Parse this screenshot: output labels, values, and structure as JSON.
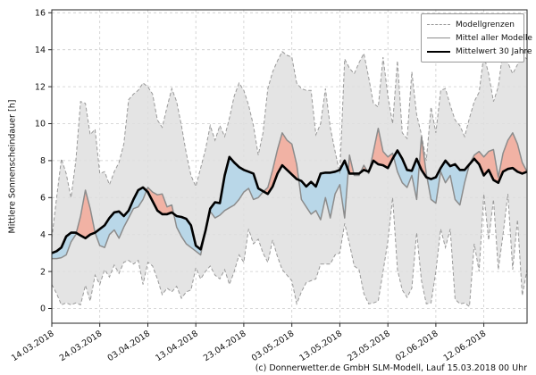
{
  "meta": {
    "caption": "(c) Donnerwetter.de GmbH SLM-Modell, Lauf 15.03.2018 00 Uhr"
  },
  "chart_data": {
    "type": "line",
    "title": "",
    "xlabel": "",
    "ylabel": "Mittlere Sonnenscheindauer [h]",
    "ylim": [
      0,
      16
    ],
    "ytick_step": 2,
    "grid": "dashed",
    "days_total": 100,
    "x_start_date": "14.03.2018",
    "x_tick_days": [
      0,
      10,
      20,
      30,
      40,
      50,
      60,
      70,
      80,
      90
    ],
    "x_tick_labels": [
      "14.03.2018",
      "24.03.2018",
      "03.04.2018",
      "13.04.2018",
      "23.04.2018",
      "03.05.2018",
      "13.05.2018",
      "23.05.2018",
      "02.06.2018",
      "12.06.2018"
    ],
    "legend": {
      "position": "top-right",
      "items": [
        {
          "label": "Modellgrenzen",
          "style": "dashed",
          "color": "#999999"
        },
        {
          "label": "Mittel aller Modelle",
          "style": "solid",
          "color": "#8c8c8c"
        },
        {
          "label": "Mittelwert 30 Jahre",
          "style": "solid-thick",
          "color": "#000000"
        }
      ]
    },
    "colors": {
      "band_fill": "#dfdfdf",
      "band_edge": "#999999",
      "above_fill": "#f1b2a4",
      "below_fill": "#b9d7e8",
      "model_mean_line": "#8c8c8c",
      "mean30_line": "#000000",
      "grid": "#cccccc",
      "spine": "#262626"
    },
    "series": [
      {
        "name": "Modellgrenzen (Maximum)",
        "values": [
          3.8,
          6.0,
          8.1,
          7.3,
          6.0,
          8.0,
          11.2,
          11.1,
          9.4,
          9.7,
          7.3,
          7.4,
          6.7,
          7.4,
          7.9,
          8.9,
          11.3,
          11.6,
          11.8,
          12.2,
          12.0,
          11.6,
          10.2,
          9.8,
          10.9,
          11.9,
          11.2,
          9.9,
          8.4,
          7.2,
          6.6,
          7.6,
          8.6,
          9.9,
          9.1,
          9.9,
          9.3,
          10.3,
          11.5,
          12.2,
          11.8,
          11.0,
          9.9,
          8.3,
          9.5,
          11.9,
          12.8,
          13.4,
          13.9,
          13.7,
          13.6,
          12.2,
          11.9,
          11.8,
          11.8,
          9.4,
          10.0,
          11.9,
          9.8,
          8.5,
          7.3,
          13.5,
          13.0,
          12.7,
          13.3,
          13.8,
          12.5,
          11.1,
          10.9,
          13.6,
          11.5,
          10.0,
          13.4,
          9.5,
          9.2,
          12.8,
          10.5,
          9.4,
          8.0,
          10.9,
          9.5,
          11.8,
          11.9,
          11.0,
          10.2,
          9.9,
          9.3,
          10.3,
          11.2,
          11.7,
          13.7,
          12.7,
          11.2,
          12.0,
          14.0,
          13.3,
          12.7,
          13.2,
          13.7,
          13.5
        ]
      },
      {
        "name": "Modellgrenzen (Minimum)",
        "values": [
          1.3,
          0.8,
          0.2,
          0.3,
          0.2,
          0.3,
          0.2,
          1.25,
          0.4,
          1.8,
          1.3,
          2.1,
          1.7,
          2.35,
          1.9,
          2.5,
          2.6,
          2.4,
          2.6,
          1.3,
          2.5,
          2.3,
          1.6,
          0.75,
          1.1,
          0.9,
          1.2,
          0.55,
          0.9,
          1.0,
          2.2,
          1.6,
          2.0,
          2.3,
          1.8,
          1.6,
          2.1,
          1.3,
          2.0,
          2.9,
          2.5,
          4.3,
          3.5,
          3.75,
          3.0,
          2.5,
          3.7,
          2.8,
          2.1,
          1.8,
          1.5,
          0.25,
          0.9,
          1.4,
          1.5,
          1.6,
          2.4,
          2.4,
          2.4,
          2.9,
          3.0,
          4.6,
          3.5,
          2.3,
          2.1,
          0.8,
          0.25,
          0.3,
          0.4,
          2.0,
          3.65,
          6.0,
          2.1,
          1.0,
          0.6,
          1.1,
          4.1,
          1.5,
          0.25,
          0.3,
          2.0,
          4.3,
          3.3,
          4.3,
          0.5,
          0.25,
          0.3,
          0.1,
          3.5,
          2.0,
          6.2,
          3.7,
          5.9,
          2.1,
          4.0,
          6.2,
          2.1,
          4.8,
          0.7,
          2.1
        ]
      },
      {
        "name": "Mittel aller Modelle",
        "values": [
          2.7,
          2.7,
          2.75,
          2.9,
          3.6,
          4.0,
          5.0,
          6.4,
          5.4,
          4.1,
          3.4,
          3.3,
          4.0,
          4.25,
          3.8,
          4.4,
          4.9,
          5.4,
          5.5,
          5.9,
          6.55,
          6.3,
          6.15,
          6.2,
          5.5,
          5.6,
          4.4,
          3.9,
          3.5,
          3.3,
          3.1,
          2.9,
          4.2,
          5.25,
          4.9,
          5.05,
          5.3,
          5.45,
          5.6,
          5.9,
          6.3,
          6.5,
          5.9,
          6.0,
          6.3,
          6.55,
          7.5,
          8.6,
          9.5,
          9.1,
          8.9,
          7.8,
          5.9,
          5.5,
          5.1,
          5.3,
          4.8,
          6.0,
          4.9,
          6.2,
          6.7,
          4.9,
          8.3,
          7.2,
          7.2,
          7.75,
          7.3,
          8.5,
          9.75,
          8.5,
          8.2,
          8.4,
          7.4,
          6.8,
          6.55,
          7.2,
          5.9,
          9.3,
          7.3,
          5.9,
          5.7,
          7.4,
          6.8,
          7.2,
          5.9,
          5.6,
          6.8,
          7.8,
          8.3,
          8.5,
          8.2,
          8.5,
          8.6,
          7.1,
          8.4,
          9.1,
          9.5,
          8.9,
          7.9,
          7.4
        ]
      },
      {
        "name": "Mittelwert 30 Jahre",
        "values": [
          3.0,
          3.1,
          3.3,
          3.9,
          4.1,
          4.1,
          3.95,
          3.8,
          4.0,
          4.1,
          4.3,
          4.5,
          4.9,
          5.2,
          5.25,
          5.0,
          5.3,
          5.9,
          6.4,
          6.55,
          6.3,
          5.8,
          5.3,
          5.1,
          5.1,
          5.2,
          5.0,
          4.95,
          4.85,
          4.5,
          3.4,
          3.2,
          4.2,
          5.4,
          5.75,
          5.7,
          7.2,
          8.2,
          7.9,
          7.65,
          7.5,
          7.4,
          7.3,
          6.5,
          6.35,
          6.2,
          6.6,
          7.3,
          7.75,
          7.5,
          7.25,
          7.0,
          6.9,
          6.6,
          6.85,
          6.6,
          7.3,
          7.35,
          7.35,
          7.4,
          7.5,
          8.0,
          7.3,
          7.3,
          7.3,
          7.5,
          7.4,
          8.0,
          7.8,
          7.75,
          7.6,
          8.1,
          8.55,
          8.1,
          7.5,
          7.45,
          8.1,
          7.5,
          7.1,
          7.0,
          7.1,
          7.6,
          8.0,
          7.7,
          7.8,
          7.5,
          7.5,
          7.8,
          8.1,
          7.8,
          7.2,
          7.5,
          6.95,
          6.8,
          7.4,
          7.55,
          7.6,
          7.4,
          7.3,
          7.4
        ]
      }
    ]
  }
}
